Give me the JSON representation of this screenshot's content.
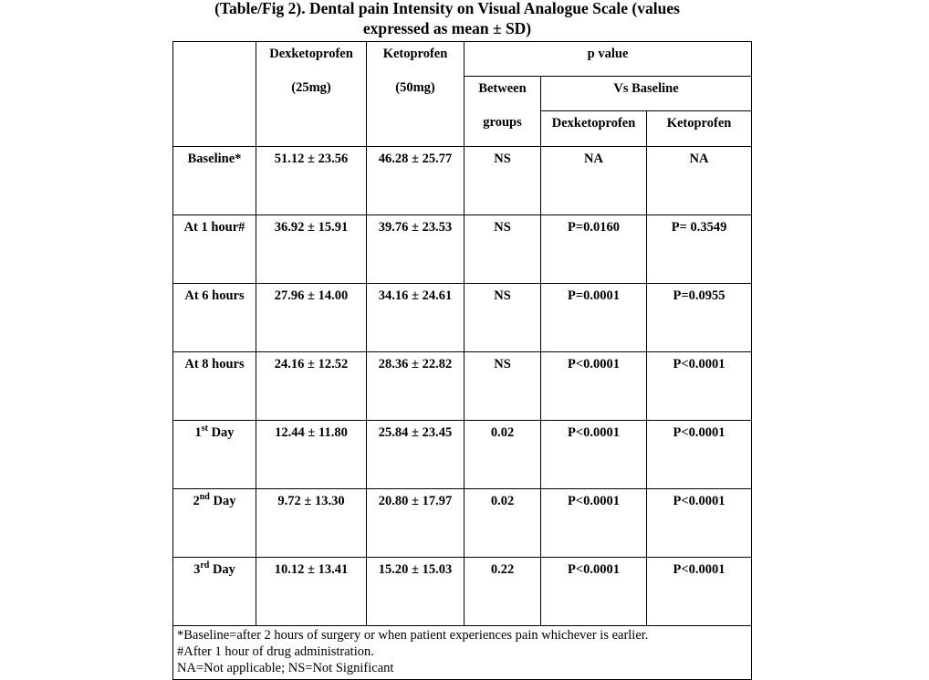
{
  "title": {
    "line1": "(Table/Fig  2). Dental pain Intensity on Visual Analogue Scale (values",
    "line2": "expressed as mean ±  SD)"
  },
  "header": {
    "dex_name": "Dexketoprofen",
    "dex_dose": "(25mg)",
    "keto_name": "Ketoprofen",
    "keto_dose": "(50mg)",
    "p_value": "p value",
    "between_1": "Between",
    "between_2": "groups",
    "vs_baseline": "Vs Baseline",
    "vs_dex": "Dexketoprofen",
    "vs_keto": "Ketoprofen"
  },
  "rows": [
    {
      "label": "Baseline*",
      "sup": "",
      "rest": "",
      "dex": "51.12 ± 23.56",
      "keto": "46.28 ± 25.77",
      "between": "NS",
      "vs_dex": "NA",
      "vs_keto": "NA"
    },
    {
      "label": "At 1 hour#",
      "sup": "",
      "rest": "",
      "dex": "36.92 ± 15.91",
      "keto": "39.76 ± 23.53",
      "between": "NS",
      "vs_dex": "P=0.0160",
      "vs_keto": "P= 0.3549"
    },
    {
      "label": "At 6 hours",
      "sup": "",
      "rest": "",
      "dex": "27.96 ± 14.00",
      "keto": "34.16 ± 24.61",
      "between": "NS",
      "vs_dex": "P=0.0001",
      "vs_keto": "P=0.0955"
    },
    {
      "label": "At 8 hours",
      "sup": "",
      "rest": "",
      "dex": "24.16 ± 12.52",
      "keto": "28.36 ± 22.82",
      "between": "NS",
      "vs_dex": "P<0.0001",
      "vs_keto": "P<0.0001"
    },
    {
      "label": "1",
      "sup": "st",
      "rest": " Day",
      "dex": "12.44 ± 11.80",
      "keto": "25.84 ± 23.45",
      "between": "0.02",
      "vs_dex": "P<0.0001",
      "vs_keto": "P<0.0001"
    },
    {
      "label": "2",
      "sup": "nd",
      "rest": " Day",
      "dex": "9.72 ± 13.30",
      "keto": "20.80 ± 17.97",
      "between": "0.02",
      "vs_dex": "P<0.0001",
      "vs_keto": "P<0.0001"
    },
    {
      "label": "3",
      "sup": "rd",
      "rest": " Day",
      "dex": "10.12 ± 13.41",
      "keto": "15.20 ± 15.03",
      "between": "0.22",
      "vs_dex": "P<0.0001",
      "vs_keto": "P<0.0001"
    }
  ],
  "footnotes": [
    "*Baseline=after 2 hours of surgery or when patient experiences pain whichever is earlier.",
    "#After 1 hour of drug administration.",
    "NA=Not applicable; NS=Not Significant"
  ]
}
